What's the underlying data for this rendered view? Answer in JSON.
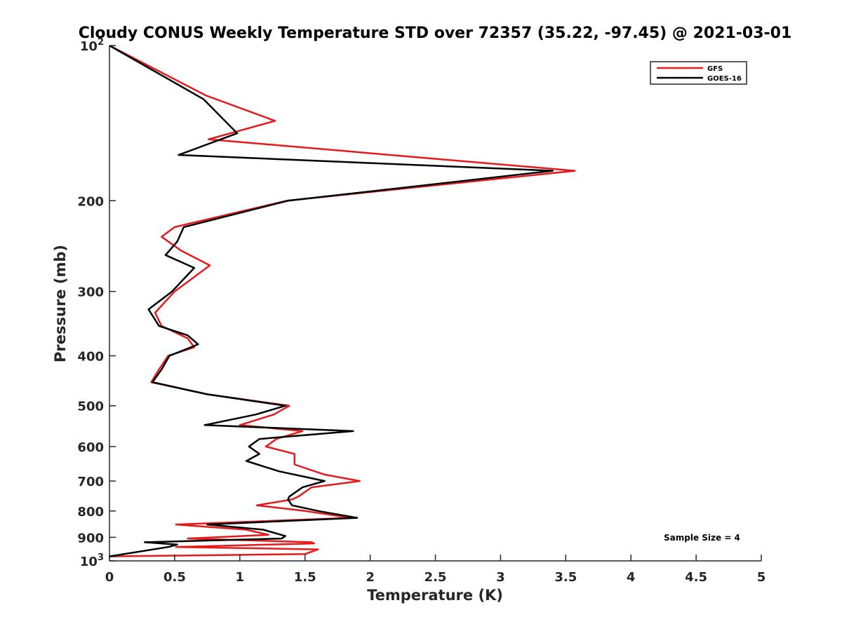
{
  "chart_data": {
    "type": "line",
    "title": "Cloudy CONUS Weekly Temperature STD over 72357 (35.22, -97.45) @ 2021-03-01",
    "xlabel": "Temperature (K)",
    "ylabel": "Pressure (mb)",
    "xlim": [
      0,
      5
    ],
    "ylim": [
      100,
      1000
    ],
    "y_scale": "log",
    "y_reversed": true,
    "grid": false,
    "legend_position": "top-right",
    "x_ticks": [
      "0",
      "0.5",
      "1",
      "1.5",
      "2",
      "2.5",
      "3",
      "3.5",
      "4",
      "4.5",
      "5"
    ],
    "y_ticks": [
      {
        "value": 100,
        "label": "10",
        "sup": "2"
      },
      {
        "value": 200,
        "label": "200"
      },
      {
        "value": 300,
        "label": "300"
      },
      {
        "value": 400,
        "label": "400"
      },
      {
        "value": 500,
        "label": "500"
      },
      {
        "value": 600,
        "label": "600"
      },
      {
        "value": 700,
        "label": "700"
      },
      {
        "value": 800,
        "label": "800"
      },
      {
        "value": 900,
        "label": "900"
      },
      {
        "value": 1000,
        "label": "10",
        "sup": "3"
      }
    ],
    "series": [
      {
        "name": "GFS",
        "color": "#e41a1c",
        "points": [
          [
            0,
            100
          ],
          [
            0.74,
            125
          ],
          [
            1.27,
            140
          ],
          [
            0.76,
            152
          ],
          [
            3.57,
            175
          ],
          [
            1.36,
            200
          ],
          [
            0.5,
            225
          ],
          [
            0.4,
            235
          ],
          [
            0.55,
            250
          ],
          [
            0.77,
            267
          ],
          [
            0.5,
            300
          ],
          [
            0.35,
            330
          ],
          [
            0.4,
            350
          ],
          [
            0.6,
            370
          ],
          [
            0.65,
            385
          ],
          [
            0.45,
            400
          ],
          [
            0.38,
            425
          ],
          [
            0.32,
            450
          ],
          [
            0.75,
            475
          ],
          [
            1.38,
            500
          ],
          [
            1.26,
            520
          ],
          [
            1.0,
            545
          ],
          [
            1.48,
            560
          ],
          [
            1.28,
            580
          ],
          [
            1.2,
            600
          ],
          [
            1.42,
            620
          ],
          [
            1.42,
            650
          ],
          [
            1.65,
            680
          ],
          [
            1.92,
            700
          ],
          [
            1.55,
            720
          ],
          [
            1.45,
            750
          ],
          [
            1.4,
            760
          ],
          [
            1.13,
            780
          ],
          [
            1.5,
            800
          ],
          [
            1.85,
            825
          ],
          [
            0.51,
            850
          ],
          [
            1.05,
            870
          ],
          [
            1.22,
            890
          ],
          [
            0.6,
            905
          ],
          [
            1.55,
            920
          ],
          [
            1.57,
            925
          ],
          [
            0.51,
            940
          ],
          [
            1.6,
            950
          ],
          [
            1.5,
            970
          ],
          [
            0,
            980
          ]
        ]
      },
      {
        "name": "GOES-16",
        "color": "#000000",
        "points": [
          [
            0,
            100
          ],
          [
            0.72,
            127
          ],
          [
            0.98,
            148
          ],
          [
            0.53,
            163
          ],
          [
            3.4,
            175
          ],
          [
            1.37,
            200
          ],
          [
            0.57,
            225
          ],
          [
            0.52,
            240
          ],
          [
            0.43,
            255
          ],
          [
            0.65,
            270
          ],
          [
            0.48,
            300
          ],
          [
            0.3,
            325
          ],
          [
            0.38,
            350
          ],
          [
            0.6,
            365
          ],
          [
            0.68,
            380
          ],
          [
            0.46,
            400
          ],
          [
            0.4,
            425
          ],
          [
            0.33,
            450
          ],
          [
            0.75,
            475
          ],
          [
            1.35,
            500
          ],
          [
            1.12,
            520
          ],
          [
            0.73,
            545
          ],
          [
            1.87,
            560
          ],
          [
            1.15,
            580
          ],
          [
            1.07,
            600
          ],
          [
            1.15,
            620
          ],
          [
            1.05,
            640
          ],
          [
            1.3,
            670
          ],
          [
            1.65,
            700
          ],
          [
            1.48,
            720
          ],
          [
            1.38,
            750
          ],
          [
            1.37,
            760
          ],
          [
            1.4,
            780
          ],
          [
            1.6,
            800
          ],
          [
            1.9,
            825
          ],
          [
            0.75,
            850
          ],
          [
            1.18,
            870
          ],
          [
            1.35,
            895
          ],
          [
            1.32,
            905
          ],
          [
            0.27,
            920
          ],
          [
            0.52,
            930
          ],
          [
            0.45,
            940
          ],
          [
            0,
            980
          ]
        ]
      }
    ],
    "annotations": [
      "Sample Size = 4"
    ]
  }
}
